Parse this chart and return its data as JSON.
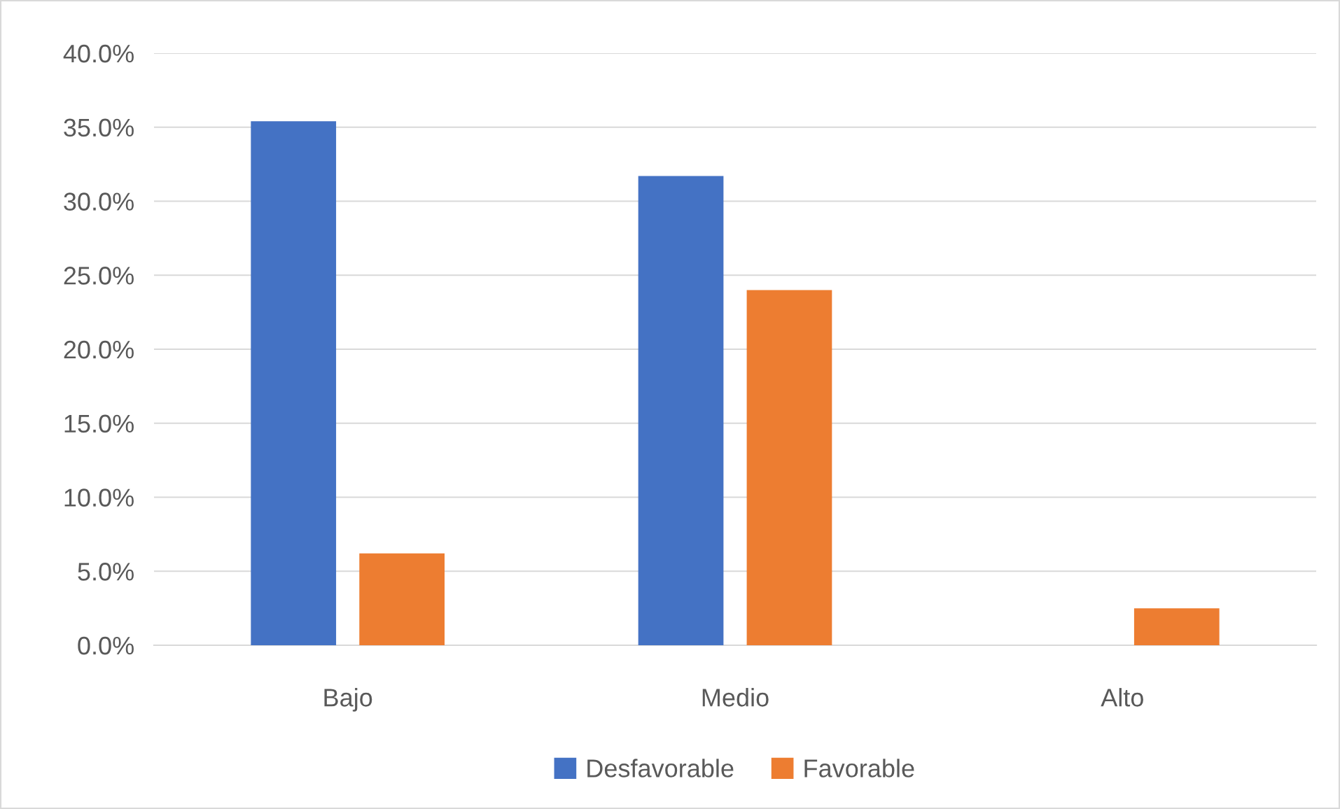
{
  "chart_data": {
    "type": "bar",
    "categories": [
      "Bajo",
      "Medio",
      "Alto"
    ],
    "series": [
      {
        "name": "Desfavorable",
        "color": "#4472c4",
        "values": [
          35.4,
          31.7,
          0
        ]
      },
      {
        "name": "Favorable",
        "color": "#ed7d31",
        "values": [
          6.2,
          24.0,
          2.5
        ]
      }
    ],
    "ylim": [
      0,
      40
    ],
    "yticks": [
      {
        "value": 0,
        "label": "0.0%"
      },
      {
        "value": 5,
        "label": "5.0%"
      },
      {
        "value": 10,
        "label": "10.0%"
      },
      {
        "value": 15,
        "label": "15.0%"
      },
      {
        "value": 20,
        "label": "20.0%"
      },
      {
        "value": 25,
        "label": "25.0%"
      },
      {
        "value": 30,
        "label": "30.0%"
      },
      {
        "value": 35,
        "label": "35.0%"
      },
      {
        "value": 40,
        "label": "40.0%"
      }
    ],
    "grid": "y",
    "legend": "bottom"
  }
}
